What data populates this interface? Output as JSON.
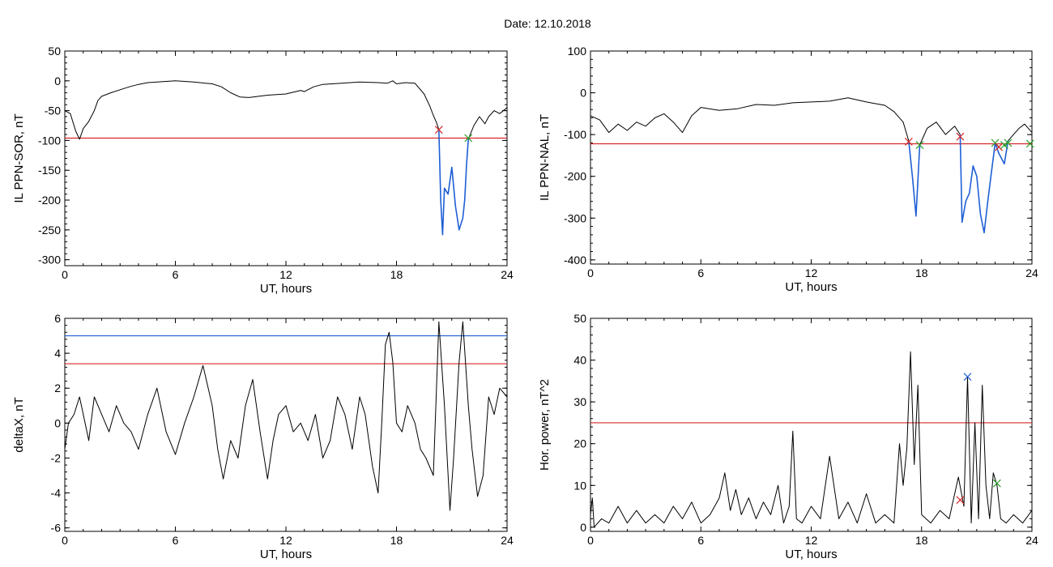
{
  "figure": {
    "title": "Date:  12.10.2018"
  },
  "chart_data": [
    {
      "type": "line",
      "xlabel": "UT, hours",
      "ylabel": "IL PPN-SOR, nT",
      "xlim": [
        0,
        24
      ],
      "ylim": [
        -310,
        50
      ],
      "xticks": [
        0,
        6,
        12,
        18,
        24
      ],
      "yticks": [
        50,
        0,
        -50,
        -100,
        -150,
        -200,
        -250,
        -300
      ],
      "threshold": -96,
      "threshold_color": "#d62728",
      "series": [
        {
          "color": "#000000",
          "x": [
            0,
            0.3,
            0.6,
            0.8,
            1.0,
            1.3,
            1.6,
            1.8,
            2.0,
            2.5,
            3.0,
            3.5,
            4.0,
            4.5,
            5.0,
            5.5,
            6.0,
            7.0,
            8.0,
            8.5,
            9.0,
            9.5,
            10.0,
            11.0,
            12.0,
            12.8,
            13.0,
            13.5,
            14.0,
            15.0,
            16.0,
            17.0,
            17.5,
            17.8,
            18.0,
            18.5,
            19.0,
            19.5,
            19.8,
            20.0,
            20.2,
            20.3
          ],
          "y": [
            -50,
            -55,
            -85,
            -98,
            -80,
            -68,
            -50,
            -33,
            -26,
            -20,
            -15,
            -10,
            -6,
            -3,
            -2,
            -1,
            0,
            -2,
            -5,
            -10,
            -20,
            -27,
            -28,
            -24,
            -22,
            -16,
            -18,
            -10,
            -6,
            -4,
            -2,
            -3,
            -4,
            0,
            -5,
            -3,
            -4,
            -22,
            -42,
            -58,
            -72,
            -82
          ]
        },
        {
          "color": "#1f5fd4",
          "x": [
            20.3,
            20.4,
            20.5,
            20.6,
            20.8,
            21.0,
            21.2,
            21.4,
            21.6,
            21.7,
            21.8,
            21.9
          ],
          "y": [
            -82,
            -200,
            -258,
            -180,
            -190,
            -145,
            -210,
            -250,
            -230,
            -200,
            -140,
            -98
          ]
        },
        {
          "color": "#000000",
          "x": [
            21.9,
            22.2,
            22.5,
            22.8,
            23.0,
            23.3,
            23.6,
            24.0
          ],
          "y": [
            -98,
            -75,
            -60,
            -72,
            -60,
            -50,
            -55,
            -45
          ]
        }
      ],
      "markers": [
        {
          "x": 20.3,
          "y": -82,
          "color": "#d62728"
        },
        {
          "x": 21.9,
          "y": -96,
          "color": "#2ca02c"
        }
      ]
    },
    {
      "type": "line",
      "xlabel": "UT, hours",
      "ylabel": "IL PPN-NAL, nT",
      "xlim": [
        0,
        24
      ],
      "ylim": [
        -410,
        100
      ],
      "xticks": [
        0,
        6,
        12,
        18,
        24
      ],
      "yticks": [
        100,
        0,
        -100,
        -200,
        -300,
        -400
      ],
      "threshold": -122,
      "threshold_color": "#d62728",
      "series": [
        {
          "color": "#000000",
          "x": [
            0,
            0.5,
            1.0,
            1.5,
            2.0,
            2.5,
            3.0,
            3.5,
            4.0,
            4.5,
            5.0,
            5.5,
            6.0,
            7.0,
            8.0,
            9.0,
            10.0,
            11.0,
            12.0,
            13.0,
            14.0,
            15.0,
            16.0,
            16.5,
            17.0,
            17.3
          ],
          "y": [
            -55,
            -65,
            -95,
            -75,
            -90,
            -70,
            -80,
            -60,
            -50,
            -70,
            -95,
            -55,
            -35,
            -42,
            -38,
            -28,
            -30,
            -24,
            -22,
            -20,
            -12,
            -22,
            -30,
            -45,
            -70,
            -115
          ]
        },
        {
          "color": "#1f5fd4",
          "x": [
            17.3,
            17.5,
            17.7,
            17.9
          ],
          "y": [
            -115,
            -200,
            -295,
            -125
          ]
        },
        {
          "color": "#000000",
          "x": [
            17.9,
            18.3,
            18.8,
            19.3,
            19.8,
            20.1
          ],
          "y": [
            -125,
            -85,
            -70,
            -100,
            -80,
            -100
          ]
        },
        {
          "color": "#1f5fd4",
          "x": [
            20.1,
            20.2,
            20.4,
            20.6,
            20.8,
            21.0,
            21.2,
            21.4,
            21.6,
            21.8,
            22.0,
            22.2,
            22.5,
            22.7
          ],
          "y": [
            -100,
            -310,
            -260,
            -240,
            -175,
            -200,
            -290,
            -335,
            -260,
            -190,
            -120,
            -145,
            -170,
            -115
          ]
        },
        {
          "color": "#000000",
          "x": [
            22.7,
            23.0,
            23.3,
            23.6,
            24.0
          ],
          "y": [
            -115,
            -100,
            -85,
            -75,
            -95
          ]
        }
      ],
      "markers": [
        {
          "x": 17.3,
          "y": -117,
          "color": "#d62728"
        },
        {
          "x": 17.9,
          "y": -125,
          "color": "#2ca02c"
        },
        {
          "x": 20.1,
          "y": -105,
          "color": "#d62728"
        },
        {
          "x": 22.0,
          "y": -120,
          "color": "#2ca02c"
        },
        {
          "x": 22.2,
          "y": -130,
          "color": "#d62728"
        },
        {
          "x": 22.5,
          "y": -125,
          "color": "#2ca02c"
        },
        {
          "x": 22.7,
          "y": -120,
          "color": "#2ca02c"
        },
        {
          "x": 23.9,
          "y": -122,
          "color": "#2ca02c"
        }
      ]
    },
    {
      "type": "line",
      "xlabel": "UT, hours",
      "ylabel": "deltaX, nT",
      "xlim": [
        0,
        24
      ],
      "ylim": [
        -6.2,
        6
      ],
      "xticks": [
        0,
        6,
        12,
        18,
        24
      ],
      "yticks": [
        6,
        4,
        2,
        0,
        -2,
        -4,
        -6
      ],
      "thresholds": [
        {
          "value": 5.0,
          "color": "#1f5fd4"
        },
        {
          "value": 3.4,
          "color": "#d62728"
        }
      ],
      "series": [
        {
          "color": "#000000",
          "x": [
            0,
            0.2,
            0.5,
            0.8,
            1.0,
            1.3,
            1.6,
            2.0,
            2.4,
            2.8,
            3.2,
            3.6,
            4.0,
            4.5,
            5.0,
            5.5,
            6.0,
            6.5,
            7.0,
            7.5,
            8.0,
            8.3,
            8.6,
            9.0,
            9.4,
            9.8,
            10.2,
            10.6,
            11.0,
            11.3,
            11.6,
            12.0,
            12.4,
            12.8,
            13.2,
            13.6,
            14.0,
            14.4,
            14.8,
            15.2,
            15.6,
            16.0,
            16.3,
            16.7,
            17.0,
            17.2,
            17.4,
            17.6,
            17.8,
            18.0,
            18.3,
            18.6,
            19.0,
            19.3,
            19.6,
            20.0,
            20.3,
            20.6,
            20.9,
            21.1,
            21.4,
            21.6,
            21.9,
            22.1,
            22.4,
            22.7,
            23.0,
            23.3,
            23.6,
            24.0
          ],
          "y": [
            -1.5,
            0,
            0.5,
            1.5,
            0.5,
            -1.0,
            1.5,
            0.5,
            -0.5,
            1.0,
            0,
            -0.5,
            -1.5,
            0.5,
            2.0,
            -0.5,
            -1.8,
            0,
            1.5,
            3.3,
            1.0,
            -1.5,
            -3.2,
            -1.0,
            -2.0,
            1.0,
            2.5,
            -0.5,
            -3.2,
            -1.0,
            0.5,
            1.0,
            -0.5,
            0,
            -1.0,
            0.5,
            -2.0,
            -1.0,
            1.5,
            0.5,
            -1.5,
            1.5,
            0.5,
            -2.5,
            -4.0,
            0,
            4.5,
            5.2,
            3.5,
            0,
            -0.5,
            1.0,
            0,
            -1.5,
            -2.0,
            -3.0,
            5.8,
            1.0,
            -5.0,
            -2.0,
            3.5,
            5.8,
            1.0,
            -1.5,
            -4.2,
            -3.0,
            1.5,
            0.5,
            2.0,
            1.5
          ]
        }
      ]
    },
    {
      "type": "line",
      "xlabel": "UT, hours",
      "ylabel": "Hor. power, nT^2",
      "xlim": [
        0,
        24
      ],
      "ylim": [
        -1,
        50
      ],
      "xticks": [
        0,
        6,
        12,
        18,
        24
      ],
      "yticks": [
        50,
        40,
        30,
        20,
        10,
        0
      ],
      "threshold": 25,
      "threshold_color": "#d62728",
      "series": [
        {
          "color": "#000000",
          "x": [
            0,
            0.1,
            0.2,
            0.6,
            1.0,
            1.5,
            2.0,
            2.5,
            3.0,
            3.5,
            4.0,
            4.5,
            5.0,
            5.5,
            6.0,
            6.5,
            7.0,
            7.3,
            7.6,
            7.9,
            8.2,
            8.6,
            9.0,
            9.4,
            9.8,
            10.2,
            10.5,
            10.8,
            11.0,
            11.2,
            11.5,
            12.0,
            12.5,
            13.0,
            13.5,
            14.0,
            14.5,
            15.0,
            15.5,
            16.0,
            16.5,
            16.8,
            17.0,
            17.2,
            17.4,
            17.6,
            17.8,
            18.0,
            18.5,
            19.0,
            19.5,
            20.0,
            20.3,
            20.5,
            20.7,
            20.9,
            21.1,
            21.3,
            21.5,
            21.7,
            21.9,
            22.1,
            22.3,
            22.6,
            23.0,
            23.5,
            24.0
          ],
          "y": [
            3,
            7,
            0,
            2,
            1,
            5,
            1,
            4,
            1,
            3,
            1,
            5,
            2,
            6,
            1,
            3,
            7,
            13,
            4,
            9,
            3,
            7,
            2,
            6,
            3,
            10,
            1,
            5,
            23,
            2,
            1,
            5,
            2,
            17,
            2,
            6,
            1,
            8,
            1,
            3,
            1,
            20,
            10,
            19,
            42,
            15,
            34,
            3,
            1,
            4,
            2,
            12,
            5,
            36,
            1,
            25,
            2,
            34,
            10,
            2,
            13,
            10,
            2,
            1,
            3,
            1,
            4
          ]
        }
      ],
      "markers": [
        {
          "x": 20.1,
          "y": 6.5,
          "color": "#d62728"
        },
        {
          "x": 20.5,
          "y": 36,
          "color": "#1f5fd4"
        },
        {
          "x": 22.1,
          "y": 10.5,
          "color": "#2ca02c"
        }
      ]
    }
  ]
}
